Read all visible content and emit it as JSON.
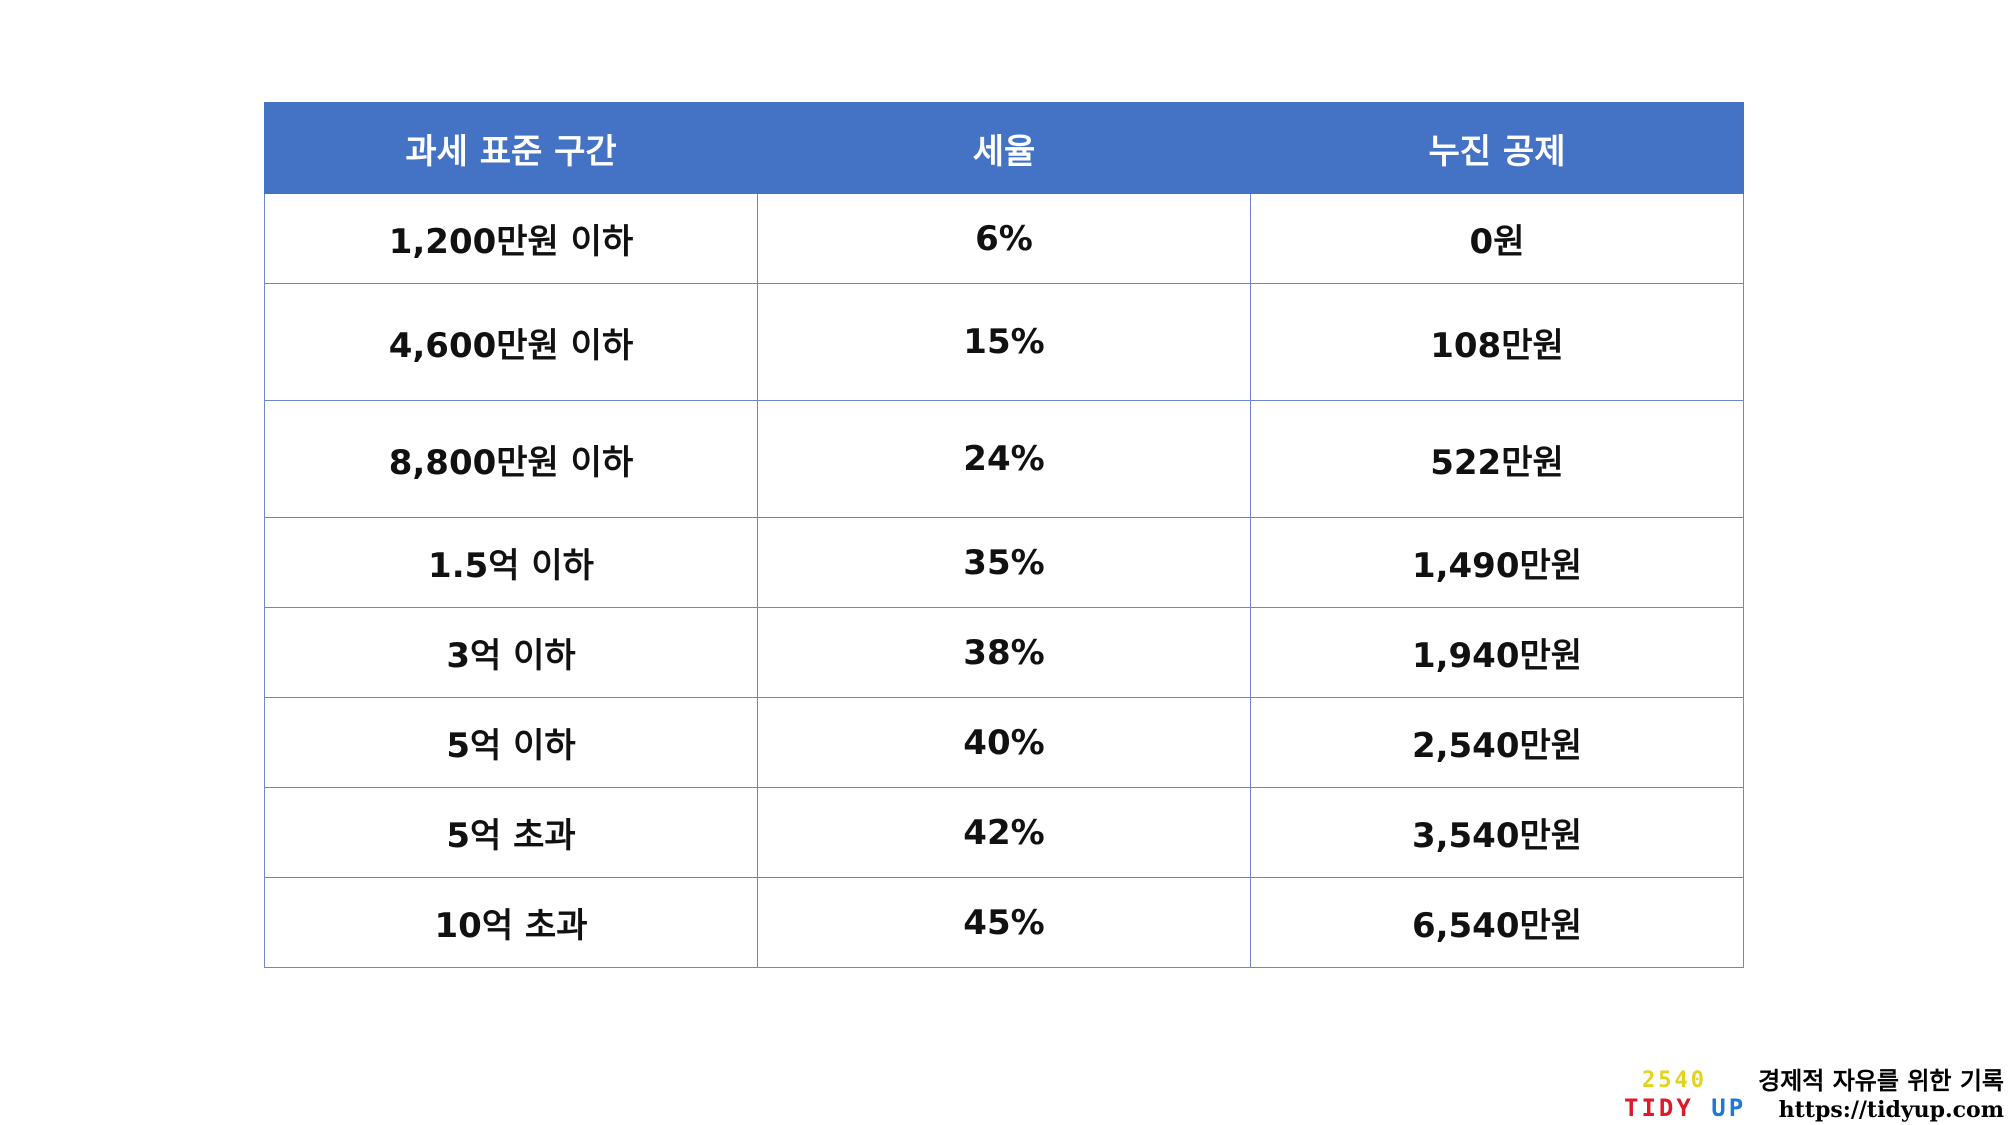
{
  "table": {
    "headers": [
      "과세 표준 구간",
      "세율",
      "누진 공제"
    ],
    "rows": [
      [
        "1,200만원 이하",
        "6%",
        "0원"
      ],
      [
        "4,600만원 이하",
        "15%",
        "108만원"
      ],
      [
        "8,800만원 이하",
        "24%",
        "522만원"
      ],
      [
        "1.5억 이하",
        "35%",
        "1,490만원"
      ],
      [
        "3억 이하",
        "38%",
        "1,940만원"
      ],
      [
        "5억 이하",
        "40%",
        "2,540만원"
      ],
      [
        "5억 초과",
        "42%",
        "3,540만원"
      ],
      [
        "10억 초과",
        "45%",
        "6,540만원"
      ]
    ]
  },
  "brand": {
    "logo_top": "2540",
    "logo_tidy": "TIDY",
    "logo_up": "UP",
    "tagline": "경제적 자유를 위한 기록",
    "url": "https://tidyup.com"
  },
  "colors": {
    "header_bg": "#4472c4",
    "border": "#6f86c7",
    "logo_yellow": "#e4d21b",
    "logo_red": "#e0192a",
    "logo_blue": "#1f78d6"
  }
}
